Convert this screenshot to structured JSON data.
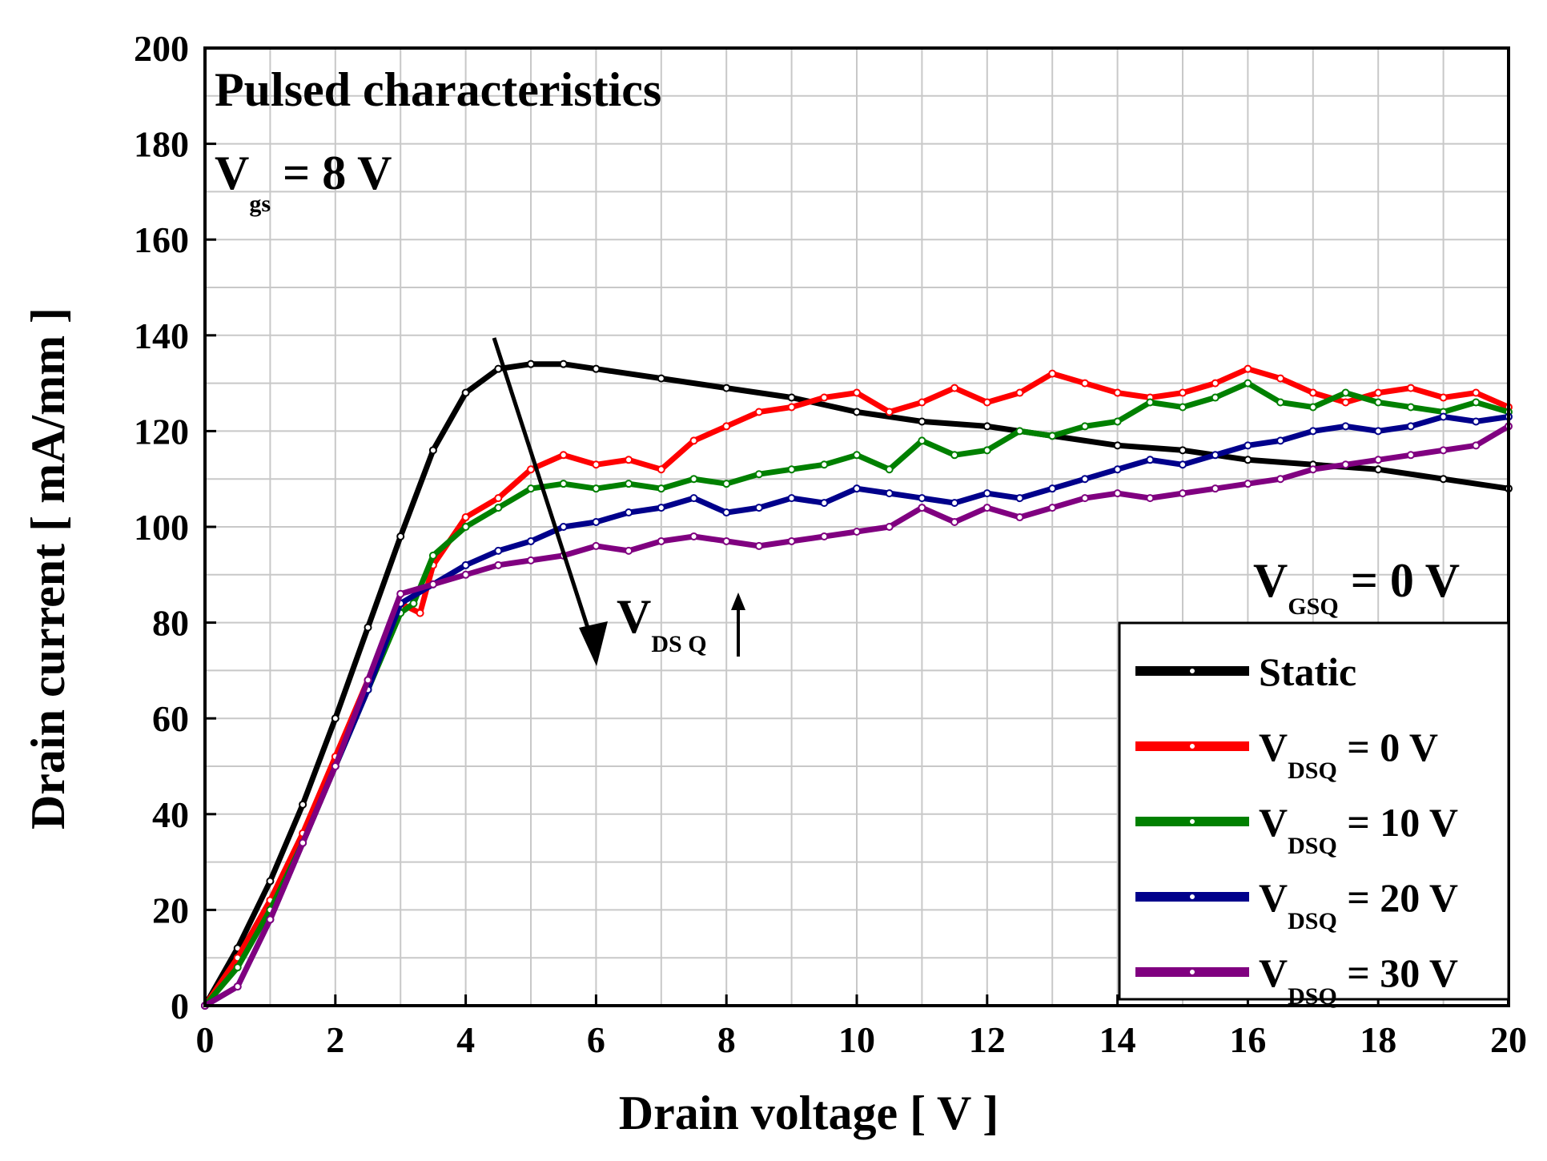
{
  "chart_data": {
    "type": "line",
    "title": "Pulsed characteristics",
    "xlabel": "Drain voltage [ V ]",
    "ylabel": "Drain current [ mA/mm ]",
    "xlim": [
      0,
      20
    ],
    "ylim": [
      0,
      200
    ],
    "xticks": [
      0,
      2,
      4,
      6,
      8,
      10,
      12,
      14,
      16,
      18,
      20
    ],
    "yticks": [
      0,
      20,
      40,
      60,
      80,
      100,
      120,
      140,
      160,
      180,
      200
    ],
    "grid": true,
    "legend_position": "bottom-right",
    "annotations": {
      "vgs": {
        "main": "V",
        "sub": "gs",
        "rest": " = 8 V"
      },
      "vgsq": {
        "main": "V",
        "sub": "GSQ",
        "rest": " = 0 V"
      },
      "vdsq_arrow": {
        "main": "V",
        "sub": "DS Q"
      }
    },
    "series": [
      {
        "name": "Static",
        "legend_main": "Static",
        "legend_sub": "",
        "color": "#000000",
        "x": [
          0,
          0.5,
          1,
          1.5,
          2,
          2.5,
          3,
          3.5,
          4,
          4.5,
          5,
          5.5,
          6,
          7,
          8,
          9,
          10,
          11,
          12,
          13,
          14,
          15,
          16,
          17,
          18,
          19,
          20
        ],
        "y": [
          0,
          12,
          26,
          42,
          60,
          79,
          98,
          116,
          128,
          133,
          134,
          134,
          133,
          131,
          129,
          127,
          124,
          122,
          121,
          119,
          117,
          116,
          114,
          113,
          112,
          110,
          108
        ]
      },
      {
        "name": "V_DSQ = 0 V",
        "legend_main": "V",
        "legend_sub": "DSQ",
        "legend_rest": " = 0 V",
        "color": "#ff0000",
        "x": [
          0,
          0.5,
          1,
          1.5,
          2,
          2.5,
          3,
          3.3,
          3.5,
          4,
          4.5,
          5,
          5.5,
          6,
          6.5,
          7,
          7.5,
          8,
          8.5,
          9,
          9.5,
          10,
          10.5,
          11,
          11.5,
          12,
          12.5,
          13,
          13.5,
          14,
          14.5,
          15,
          15.5,
          16,
          16.5,
          17,
          17.5,
          18,
          18.5,
          19,
          19.5,
          20
        ],
        "y": [
          0,
          10,
          22,
          36,
          52,
          68,
          84,
          82,
          92,
          102,
          106,
          112,
          115,
          113,
          114,
          112,
          118,
          121,
          124,
          125,
          127,
          128,
          124,
          126,
          129,
          126,
          128,
          132,
          130,
          128,
          127,
          128,
          130,
          133,
          131,
          128,
          126,
          128,
          129,
          127,
          128,
          125
        ]
      },
      {
        "name": "V_DSQ = 10 V",
        "legend_main": "V",
        "legend_sub": "DSQ",
        "legend_rest": " = 10 V",
        "color": "#008000",
        "x": [
          0,
          0.5,
          1,
          1.5,
          2,
          2.5,
          3,
          3.2,
          3.5,
          4,
          4.5,
          5,
          5.5,
          6,
          6.5,
          7,
          7.5,
          8,
          8.5,
          9,
          9.5,
          10,
          10.5,
          11,
          11.5,
          12,
          12.5,
          13,
          13.5,
          14,
          14.5,
          15,
          15.5,
          16,
          16.5,
          17,
          17.5,
          18,
          18.5,
          19,
          19.5,
          20
        ],
        "y": [
          0,
          8,
          20,
          34,
          50,
          66,
          82,
          84,
          94,
          100,
          104,
          108,
          109,
          108,
          109,
          108,
          110,
          109,
          111,
          112,
          113,
          115,
          112,
          118,
          115,
          116,
          120,
          119,
          121,
          122,
          126,
          125,
          127,
          130,
          126,
          125,
          128,
          126,
          125,
          124,
          126,
          124
        ]
      },
      {
        "name": "V_DSQ = 20 V",
        "legend_main": "V",
        "legend_sub": "DSQ",
        "legend_rest": " = 20 V",
        "color": "#00008b",
        "x": [
          0,
          0.5,
          1,
          1.5,
          2,
          2.5,
          3,
          3.5,
          4,
          4.5,
          5,
          5.5,
          6,
          6.5,
          7,
          7.5,
          8,
          8.5,
          9,
          9.5,
          10,
          10.5,
          11,
          11.5,
          12,
          12.5,
          13,
          13.5,
          14,
          14.5,
          15,
          15.5,
          16,
          16.5,
          17,
          17.5,
          18,
          18.5,
          19,
          19.5,
          20
        ],
        "y": [
          0,
          4,
          18,
          34,
          50,
          66,
          84,
          88,
          92,
          95,
          97,
          100,
          101,
          103,
          104,
          106,
          103,
          104,
          106,
          105,
          108,
          107,
          106,
          105,
          107,
          106,
          108,
          110,
          112,
          114,
          113,
          115,
          117,
          118,
          120,
          121,
          120,
          121,
          123,
          122,
          123
        ]
      },
      {
        "name": "V_DSQ = 30 V",
        "legend_main": "V",
        "legend_sub": "DSQ",
        "legend_rest": " = 30 V",
        "color": "#800080",
        "x": [
          0,
          0.5,
          1,
          1.5,
          2,
          2.5,
          3,
          3.5,
          4,
          4.5,
          5,
          5.5,
          6,
          6.5,
          7,
          7.5,
          8,
          8.5,
          9,
          9.5,
          10,
          10.5,
          11,
          11.5,
          12,
          12.5,
          13,
          13.5,
          14,
          14.5,
          15,
          15.5,
          16,
          16.5,
          17,
          17.5,
          18,
          18.5,
          19,
          19.5,
          20
        ],
        "y": [
          0,
          4,
          18,
          34,
          50,
          68,
          86,
          88,
          90,
          92,
          93,
          94,
          96,
          95,
          97,
          98,
          97,
          96,
          97,
          98,
          99,
          100,
          104,
          101,
          104,
          102,
          104,
          106,
          107,
          106,
          107,
          108,
          109,
          110,
          112,
          113,
          114,
          115,
          116,
          117,
          121
        ]
      }
    ]
  }
}
